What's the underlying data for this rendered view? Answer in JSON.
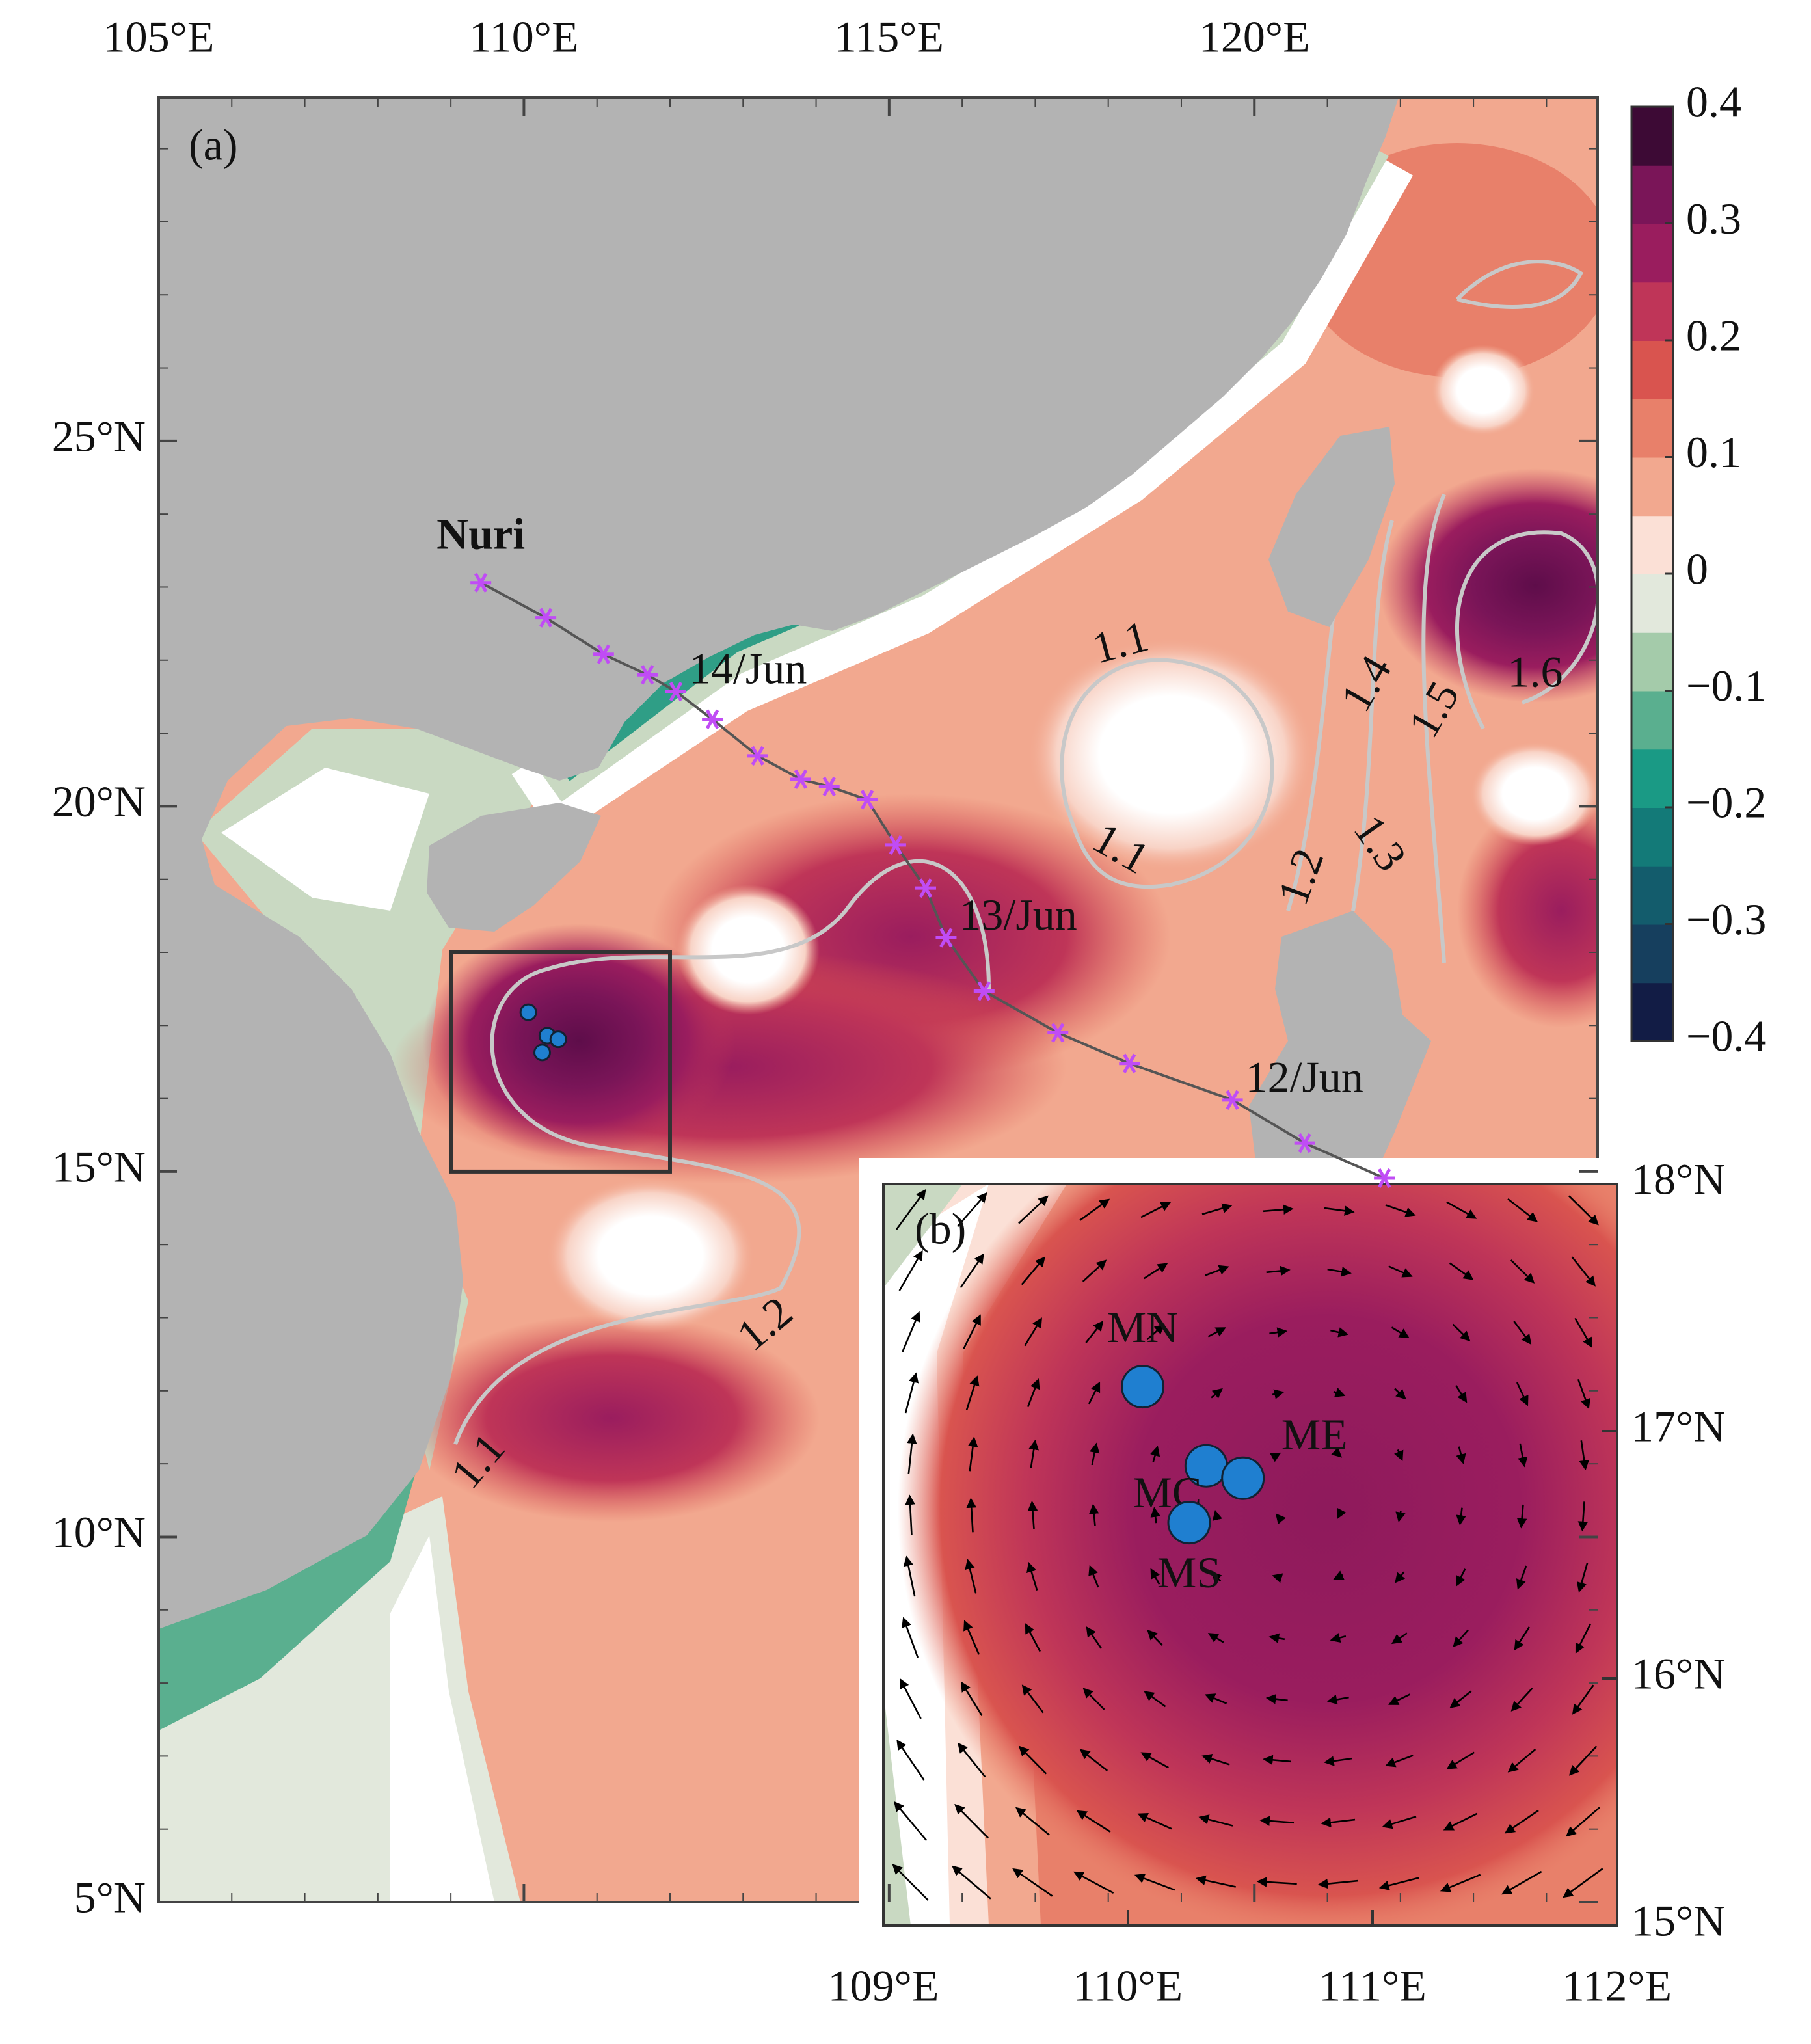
{
  "panel_a": {
    "label": "(a)",
    "xlim": [
      105,
      124.7
    ],
    "ylim": [
      5,
      29.7
    ],
    "xticks": [
      {
        "value": 105,
        "label": "105°E"
      },
      {
        "value": 110,
        "label": "110°E"
      },
      {
        "value": 115,
        "label": "115°E"
      },
      {
        "value": 120,
        "label": "120°E"
      }
    ],
    "yticks": [
      {
        "value": 5,
        "label": "5°N"
      },
      {
        "value": 10,
        "label": "10°N"
      },
      {
        "value": 15,
        "label": "15°N"
      },
      {
        "value": 20,
        "label": "20°N"
      },
      {
        "value": 25,
        "label": "25°N"
      }
    ],
    "typhoon": {
      "name": "Nuri",
      "color": "#c04cf5",
      "lon": [
        109.41,
        110.3,
        111.09,
        111.69,
        112.08,
        112.58,
        113.2,
        113.79,
        114.18,
        114.7,
        115.09,
        115.5,
        115.78,
        116.3,
        117.31,
        118.29,
        119.7,
        120.69,
        121.78
      ],
      "lat": [
        23.06,
        22.58,
        22.08,
        21.8,
        21.57,
        21.19,
        20.69,
        20.37,
        20.27,
        20.09,
        19.47,
        18.88,
        18.2,
        17.47,
        16.9,
        16.48,
        15.98,
        15.39,
        14.91
      ],
      "dates": [
        "14/Jun",
        "13/Jun",
        "12/Jun"
      ]
    },
    "contour_labels": [
      1.1,
      1.1,
      1.1,
      1.2,
      1.2,
      1.3,
      1.4,
      1.5,
      1.6
    ]
  },
  "panel_b": {
    "label": "(b)",
    "xlim": [
      109,
      112
    ],
    "ylim": [
      15,
      18
    ],
    "xticks": [
      {
        "value": 109,
        "label": "109°E"
      },
      {
        "value": 110,
        "label": "110°E"
      },
      {
        "value": 111,
        "label": "111°E"
      },
      {
        "value": 112,
        "label": "112°E"
      }
    ],
    "yticks": [
      {
        "value": 15,
        "label": "15°N"
      },
      {
        "value": 16,
        "label": "16°N"
      },
      {
        "value": 17,
        "label": "17°N"
      },
      {
        "value": 18,
        "label": "18°N"
      }
    ]
  },
  "stations": {
    "names": [
      "MN",
      "MC",
      "ME",
      "MS"
    ],
    "lon": [
      110.06,
      110.32,
      110.47,
      110.25
    ],
    "lat": [
      17.18,
      16.86,
      16.81,
      16.63
    ],
    "color": "#1f7fd0"
  },
  "colorbar": {
    "lim": [
      -0.4,
      0.4
    ],
    "ticks": [
      0.4,
      0.3,
      0.2,
      0.1,
      0,
      {
        "value": -0.1,
        "label": "−0.1"
      },
      {
        "value": -0.2,
        "label": "−0.2"
      },
      {
        "value": -0.3,
        "label": "−0.3"
      },
      {
        "value": -0.4,
        "label": "−0.4"
      }
    ],
    "colors": [
      "#121c45",
      "#163f5e",
      "#135c6c",
      "#137a78",
      "#1a9a85",
      "#5aaf8f",
      "#a4cbaa",
      "#e2e8dc",
      "#fbe0d6",
      "#f2a88f",
      "#e8806a",
      "#d9544f",
      "#bf3558",
      "#9a1d5e",
      "#7a1558",
      "#3d0a35"
    ]
  }
}
